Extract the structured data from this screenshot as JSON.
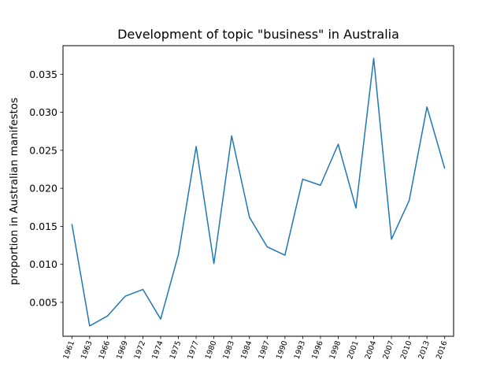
{
  "chart_data": {
    "type": "line",
    "title": "Development of topic \"business\" in Australia",
    "xlabel": "",
    "ylabel": "proportion in Australian manifestos",
    "categories": [
      "1961",
      "1963",
      "1966",
      "1969",
      "1972",
      "1974",
      "1975",
      "1977",
      "1980",
      "1983",
      "1984",
      "1987",
      "1990",
      "1993",
      "1996",
      "1998",
      "2001",
      "2004",
      "2007",
      "2010",
      "2013",
      "2016"
    ],
    "series": [
      {
        "values": [
          0.0153,
          0.0019,
          0.0032,
          0.0058,
          0.0067,
          0.0028,
          0.0113,
          0.0255,
          0.0101,
          0.0269,
          0.0162,
          0.0123,
          0.0112,
          0.0212,
          0.0204,
          0.0258,
          0.0174,
          0.0371,
          0.0133,
          0.0184,
          0.0307,
          0.0226
        ],
        "color": "#1f77b4"
      }
    ],
    "yticks": [
      "0.005",
      "0.010",
      "0.015",
      "0.020",
      "0.025",
      "0.030",
      "0.035"
    ],
    "ylim": [
      0.00054,
      0.03876
    ],
    "grid": false,
    "legend": "none"
  }
}
